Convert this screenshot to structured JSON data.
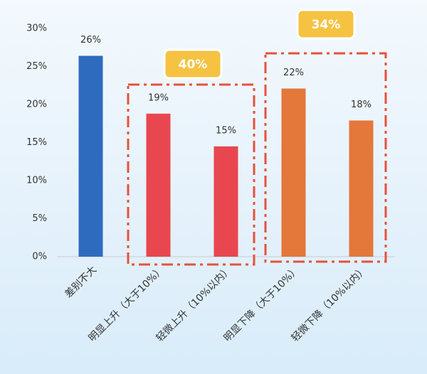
{
  "chart_data": {
    "type": "bar",
    "categories": [
      "差别不大",
      "明显上升（大于10%）",
      "轻微上升（10%以内）",
      "明显下降（大于10%）",
      "轻微下降（10%以内）"
    ],
    "values": [
      26.4,
      18.8,
      14.5,
      22.1,
      17.9
    ],
    "value_labels": [
      "26%",
      "19%",
      "15%",
      "22%",
      "18%"
    ],
    "colors": [
      "#2e6bbf",
      "#e8474f",
      "#e8474f",
      "#e4773a",
      "#e4773a"
    ],
    "ylim": [
      0,
      30
    ],
    "yticks": [
      {
        "value": 0,
        "label": "0%"
      },
      {
        "value": 5,
        "label": "5%"
      },
      {
        "value": 10,
        "label": "10%"
      },
      {
        "value": 15,
        "label": "15%"
      },
      {
        "value": 20,
        "label": "20%"
      },
      {
        "value": 25,
        "label": "25%"
      },
      {
        "value": 30,
        "label": "30%"
      }
    ],
    "annotations": [
      "34%",
      "40%"
    ]
  }
}
